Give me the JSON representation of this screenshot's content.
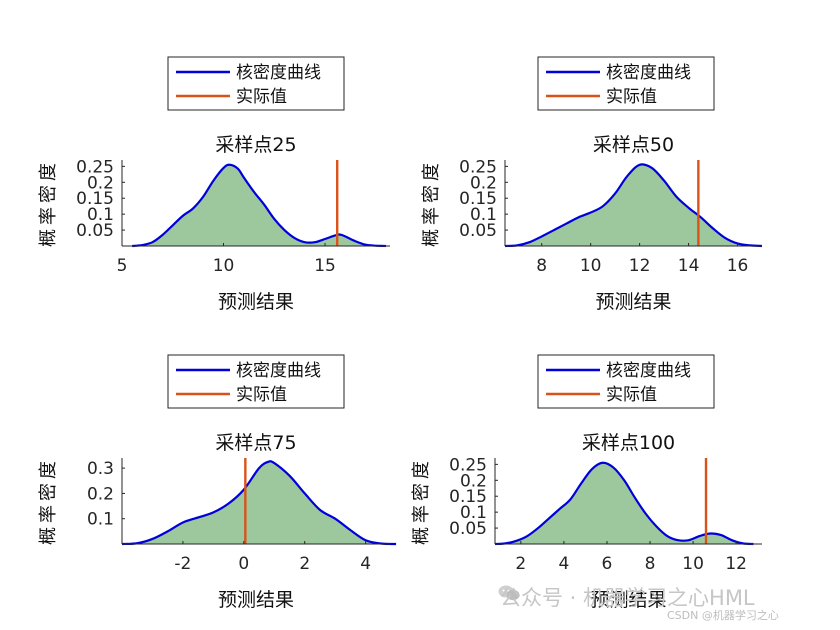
{
  "legend": {
    "kde_label": "核密度曲线",
    "actual_label": "实际值"
  },
  "colors": {
    "kde_line": "#0000dd",
    "kde_fill": "#9dc79d",
    "actual_line": "#d95319",
    "axis": "#262626"
  },
  "watermark": {
    "main": "公众号 · 机器学习之心HML",
    "sub": "CSDN @机器学习之心"
  },
  "chart_data": [
    {
      "type": "area",
      "title": "采样点25",
      "xlabel": "预测结果",
      "ylabel": "概率密度",
      "xlim": [
        5,
        18.2
      ],
      "ylim": [
        0,
        0.27
      ],
      "xticks": [
        5,
        10,
        15
      ],
      "yticks": [
        0.05,
        0.1,
        0.15,
        0.2,
        0.25
      ],
      "ytick_labels": [
        "0.05",
        "0.1",
        "0.15",
        "0.2",
        "0.25"
      ],
      "actual_value": 15.6,
      "kde": {
        "x": [
          6.0,
          6.5,
          7.0,
          7.5,
          8.0,
          8.5,
          9.0,
          9.5,
          10.0,
          10.3,
          10.7,
          11.0,
          11.5,
          12.0,
          12.5,
          13.0,
          13.5,
          14.0,
          14.5,
          15.0,
          15.5,
          15.8,
          16.5,
          17.0,
          17.5
        ],
        "y": [
          0.003,
          0.012,
          0.035,
          0.065,
          0.095,
          0.118,
          0.155,
          0.205,
          0.245,
          0.255,
          0.243,
          0.215,
          0.17,
          0.13,
          0.085,
          0.05,
          0.025,
          0.012,
          0.012,
          0.022,
          0.033,
          0.035,
          0.015,
          0.004,
          0.001
        ]
      }
    },
    {
      "type": "area",
      "title": "采样点50",
      "xlabel": "预测结果",
      "ylabel": "概率密度",
      "xlim": [
        6.5,
        17
      ],
      "ylim": [
        0,
        0.27
      ],
      "xticks": [
        8,
        10,
        12,
        14,
        16
      ],
      "yticks": [
        0.05,
        0.1,
        0.15,
        0.2,
        0.25
      ],
      "ytick_labels": [
        "0.05",
        "0.1",
        "0.15",
        "0.2",
        "0.25"
      ],
      "actual_value": 14.4,
      "kde": {
        "x": [
          7.0,
          7.5,
          8.0,
          8.5,
          9.0,
          9.5,
          10.0,
          10.5,
          11.0,
          11.5,
          12.0,
          12.5,
          13.0,
          13.5,
          14.0,
          14.5,
          15.0,
          15.5,
          16.0,
          16.5
        ],
        "y": [
          0.002,
          0.012,
          0.03,
          0.05,
          0.07,
          0.09,
          0.105,
          0.125,
          0.165,
          0.22,
          0.255,
          0.245,
          0.205,
          0.155,
          0.12,
          0.09,
          0.055,
          0.025,
          0.008,
          0.002
        ]
      }
    },
    {
      "type": "area",
      "title": "采样点75",
      "xlabel": "预测结果",
      "ylabel": "概率密度",
      "xlim": [
        -4,
        4.8
      ],
      "ylim": [
        0,
        0.34
      ],
      "xticks": [
        -2,
        0,
        2,
        4
      ],
      "yticks": [
        0.1,
        0.2,
        0.3
      ],
      "ytick_labels": [
        "0.1",
        "0.2",
        "0.3"
      ],
      "actual_value": 0.05,
      "kde": {
        "x": [
          -3.5,
          -3.0,
          -2.5,
          -2.0,
          -1.5,
          -1.0,
          -0.5,
          0.0,
          0.5,
          0.8,
          1.0,
          1.5,
          2.0,
          2.5,
          3.0,
          3.5,
          4.0,
          4.5
        ],
        "y": [
          0.003,
          0.02,
          0.05,
          0.085,
          0.105,
          0.125,
          0.16,
          0.215,
          0.3,
          0.325,
          0.32,
          0.27,
          0.2,
          0.135,
          0.1,
          0.055,
          0.015,
          0.002
        ]
      }
    },
    {
      "type": "area",
      "title": "采样点100",
      "xlabel": "预测结果",
      "ylabel": "概率密度",
      "xlim": [
        0.8,
        13.2
      ],
      "ylim": [
        0,
        0.27
      ],
      "xticks": [
        2,
        4,
        6,
        8,
        10,
        12
      ],
      "yticks": [
        0.05,
        0.1,
        0.15,
        0.2,
        0.25
      ],
      "ytick_labels": [
        "0.05",
        "0.1",
        "0.15",
        "0.2",
        "0.25"
      ],
      "actual_value": 10.6,
      "kde": {
        "x": [
          1.3,
          1.8,
          2.3,
          2.8,
          3.3,
          3.8,
          4.3,
          4.8,
          5.3,
          5.8,
          6.3,
          6.8,
          7.3,
          7.8,
          8.3,
          8.8,
          9.3,
          9.8,
          10.3,
          10.8,
          11.3,
          11.8,
          12.3
        ],
        "y": [
          0.002,
          0.01,
          0.025,
          0.05,
          0.08,
          0.11,
          0.14,
          0.19,
          0.235,
          0.255,
          0.24,
          0.2,
          0.145,
          0.095,
          0.055,
          0.025,
          0.012,
          0.012,
          0.025,
          0.033,
          0.028,
          0.012,
          0.002
        ]
      }
    }
  ]
}
